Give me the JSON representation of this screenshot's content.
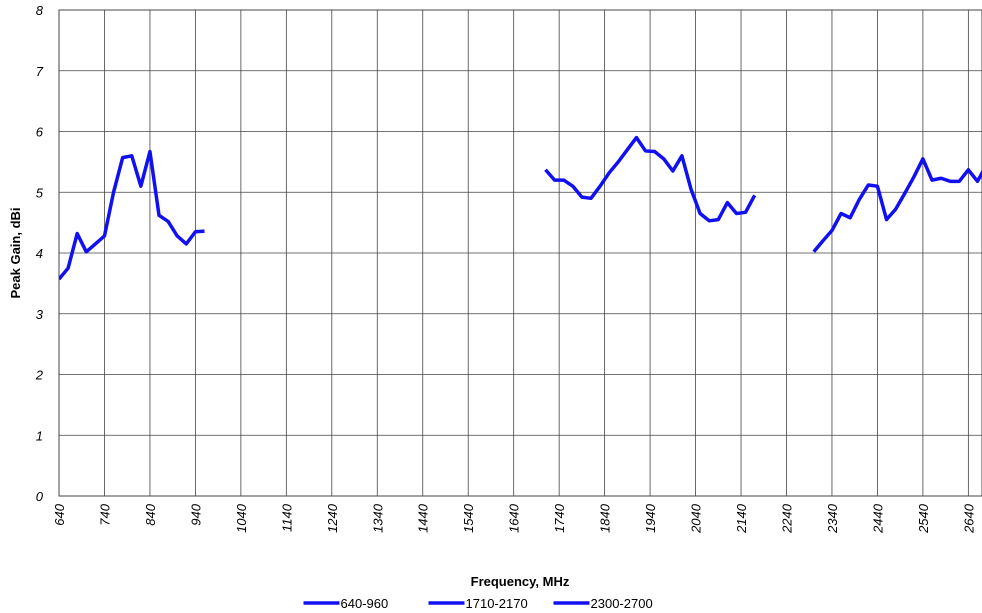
{
  "chart_data": {
    "type": "line",
    "x_label": "Frequency, MHz",
    "y_label": "Peak Gain, dBi",
    "xlim": [
      640,
      2670
    ],
    "ylim": [
      0,
      8
    ],
    "xticks": [
      640,
      740,
      840,
      940,
      1040,
      1140,
      1240,
      1340,
      1440,
      1540,
      1640,
      1740,
      1840,
      1940,
      2040,
      2140,
      2240,
      2340,
      2440,
      2540,
      2640
    ],
    "yticks": [
      0,
      1,
      2,
      3,
      4,
      5,
      6,
      7,
      8
    ],
    "grid": true,
    "legend": "bottom",
    "series": [
      {
        "name": "640-960",
        "color": "#1010f0",
        "x": [
          640,
          660,
          680,
          700,
          720,
          740,
          760,
          780,
          800,
          820,
          840,
          860,
          880,
          900,
          920,
          940,
          960
        ],
        "values": [
          3.57,
          3.75,
          4.32,
          4.02,
          4.15,
          4.28,
          5.0,
          5.57,
          5.6,
          5.1,
          5.67,
          4.62,
          4.52,
          4.28,
          4.15,
          4.35,
          4.36
        ]
      },
      {
        "name": "1710-2170",
        "color": "#1010f0",
        "x": [
          1710,
          1730,
          1750,
          1770,
          1790,
          1810,
          1830,
          1850,
          1870,
          1890,
          1910,
          1930,
          1950,
          1970,
          1990,
          2010,
          2030,
          2050,
          2070,
          2090,
          2110,
          2130,
          2150,
          2170
        ],
        "values": [
          5.37,
          5.2,
          5.2,
          5.1,
          4.92,
          4.9,
          5.1,
          5.32,
          5.5,
          5.7,
          5.9,
          5.68,
          5.67,
          5.55,
          5.35,
          5.6,
          5.05,
          4.65,
          4.53,
          4.55,
          4.83,
          4.65,
          4.67,
          4.95
        ]
      },
      {
        "name": "2300-2700",
        "color": "#1010f0",
        "x": [
          2300,
          2320,
          2340,
          2360,
          2380,
          2400,
          2420,
          2440,
          2460,
          2480,
          2500,
          2520,
          2540,
          2560,
          2580,
          2600,
          2620,
          2640,
          2660,
          2680
        ],
        "values": [
          4.02,
          4.2,
          4.37,
          4.65,
          4.58,
          4.88,
          5.12,
          5.1,
          4.55,
          4.72,
          4.98,
          5.25,
          5.55,
          5.2,
          5.23,
          5.18,
          5.18,
          5.37,
          5.18,
          5.45
        ]
      }
    ]
  }
}
